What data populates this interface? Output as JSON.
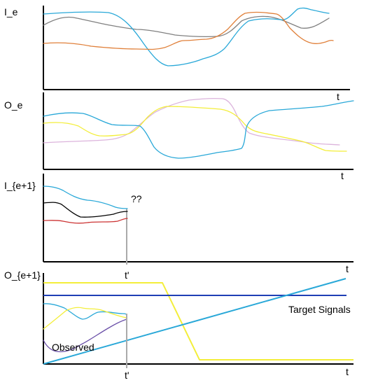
{
  "panels": {
    "ie": {
      "label": "I_e",
      "t_label": "t"
    },
    "oe": {
      "label": "O_e",
      "t_label": "t"
    },
    "ie1": {
      "label": "I_{e+1}",
      "t_label": "t",
      "unknown_label": "??",
      "time_marker_label": "t'"
    },
    "oe1": {
      "label": "O_{e+1}",
      "t_label": "t",
      "observed_label": "Observed",
      "target_label": "Target Signals",
      "time_marker_label": "t'"
    }
  },
  "colors": {
    "cyan": "#29a8d8",
    "gray": "#808080",
    "orange": "#e0803a",
    "yellow": "#f3ee3a",
    "pink": "#dcb4dc",
    "black": "#000000",
    "red": "#cc3333",
    "navy": "#1f3fb5",
    "purple": "#6a4fa8",
    "marker": "#aaaaaa"
  }
}
